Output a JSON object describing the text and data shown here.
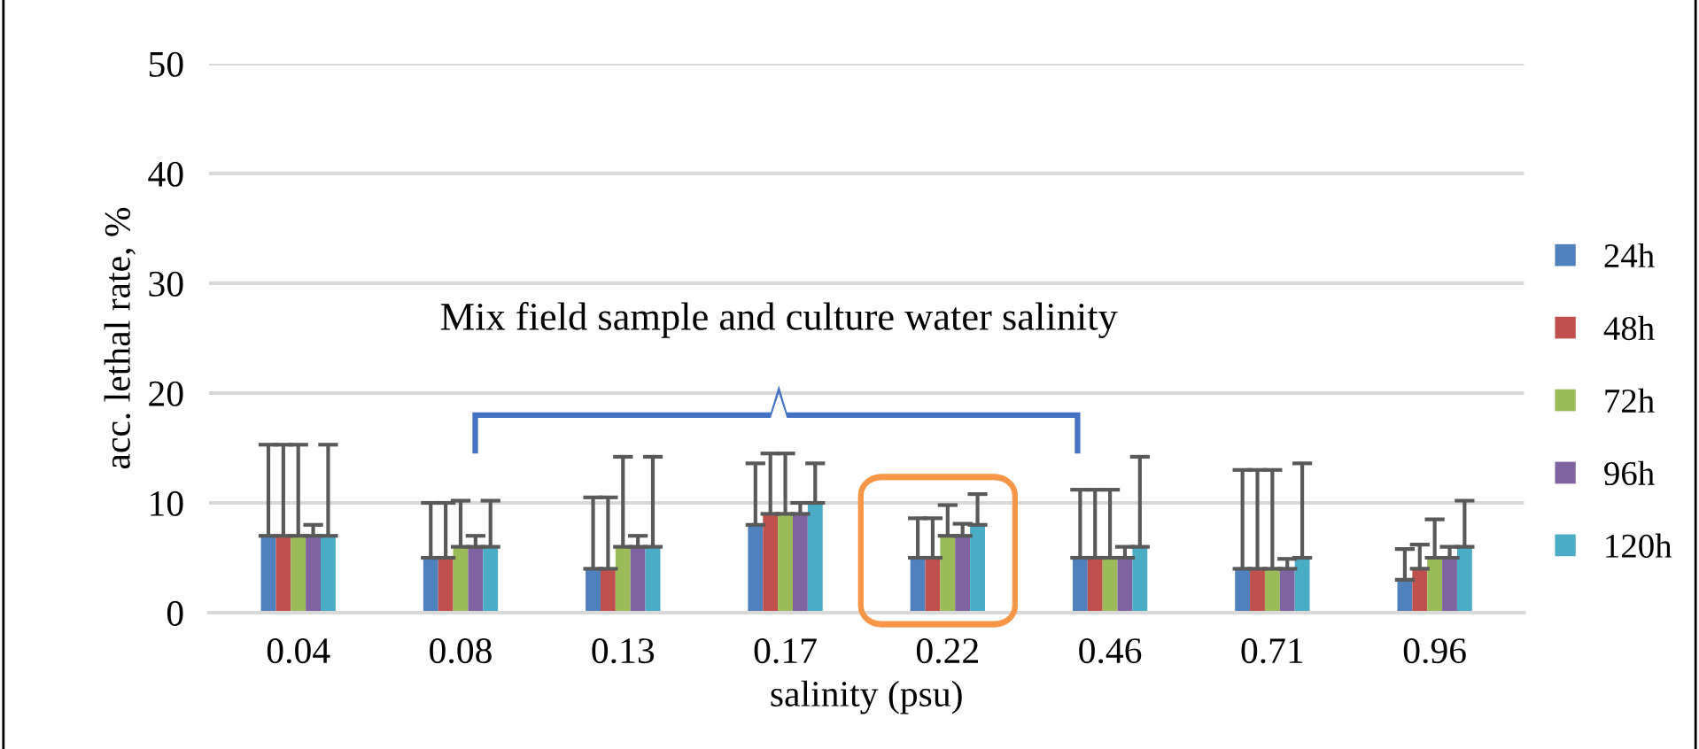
{
  "chart_data": {
    "type": "bar",
    "xlabel": "salinity (psu)",
    "ylabel": "acc. lethal rate, %",
    "categories": [
      "0.04",
      "0.08",
      "0.13",
      "0.17",
      "0.22",
      "0.46",
      "0.71",
      "0.96"
    ],
    "series": [
      {
        "name": "24h",
        "color": "#4f81bd",
        "values": [
          7,
          5,
          4,
          8,
          5,
          5,
          4,
          3
        ],
        "errors": [
          [
            7,
            15.3
          ],
          [
            5,
            10
          ],
          [
            4,
            10.5
          ],
          [
            8,
            13.6
          ],
          [
            5,
            8.6
          ],
          [
            5,
            11.2
          ],
          [
            4,
            13
          ],
          [
            3,
            5.8
          ]
        ]
      },
      {
        "name": "48h",
        "color": "#c0504d",
        "values": [
          7,
          5,
          4,
          9,
          5,
          5,
          4,
          4
        ],
        "errors": [
          [
            7,
            15.3
          ],
          [
            5,
            10
          ],
          [
            4,
            10.5
          ],
          [
            9,
            14.5
          ],
          [
            5,
            8.6
          ],
          [
            5,
            11.2
          ],
          [
            4,
            13
          ],
          [
            4,
            6.2
          ]
        ]
      },
      {
        "name": "72h",
        "color": "#9bbb59",
        "values": [
          7,
          6,
          6,
          9,
          7,
          5,
          4,
          5
        ],
        "errors": [
          [
            7,
            15.3
          ],
          [
            6,
            10.2
          ],
          [
            6,
            14.2
          ],
          [
            9,
            14.5
          ],
          [
            7,
            9.8
          ],
          [
            5,
            11.2
          ],
          [
            4,
            13
          ],
          [
            5,
            8.5
          ]
        ]
      },
      {
        "name": "96h",
        "color": "#8064a2",
        "values": [
          7,
          6,
          6,
          9,
          7,
          5,
          4,
          5
        ],
        "errors": [
          [
            7,
            8
          ],
          [
            6,
            7
          ],
          [
            6,
            7
          ],
          [
            9,
            10
          ],
          [
            7,
            8.1
          ],
          [
            5,
            6
          ],
          [
            4,
            4.9
          ],
          [
            5,
            6
          ]
        ]
      },
      {
        "name": "120h",
        "color": "#4bacc6",
        "values": [
          7,
          6,
          6,
          10,
          8,
          6,
          5,
          6
        ],
        "errors": [
          [
            7,
            15.3
          ],
          [
            6,
            10.2
          ],
          [
            6,
            14.2
          ],
          [
            10,
            13.6
          ],
          [
            8,
            10.8
          ],
          [
            6,
            14.2
          ],
          [
            5,
            13.6
          ],
          [
            6,
            10.2
          ]
        ]
      }
    ],
    "ylim": [
      0,
      50
    ],
    "yticks": [
      0,
      10,
      20,
      30,
      40,
      50
    ],
    "grid": "y",
    "legend": "right",
    "annotations": [
      "Mix field sample and culture water salinity"
    ]
  }
}
